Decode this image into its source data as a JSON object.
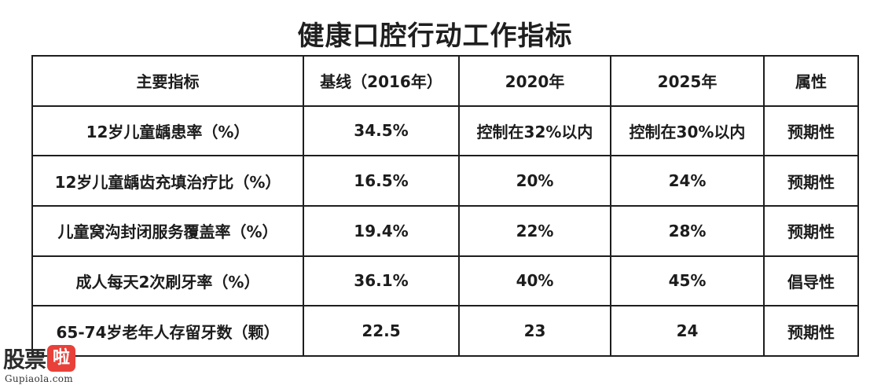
{
  "title": "健康口腔行动工作指标",
  "table": {
    "headers": [
      "主要指标",
      "基线（2016年）",
      "2020年",
      "2025年",
      "属性"
    ],
    "rows": [
      [
        "12岁儿童龋患率（%）",
        "34.5%",
        "控制在32%以内",
        "控制在30%以内",
        "预期性"
      ],
      [
        "12岁儿童龋齿充填治疗比（%）",
        "16.5%",
        "20%",
        "24%",
        "预期性"
      ],
      [
        "儿童窝沟封闭服务覆盖率（%）",
        "19.4%",
        "22%",
        "28%",
        "预期性"
      ],
      [
        "成人每天2次刷牙率（%）",
        "36.1%",
        "40%",
        "45%",
        "倡导性"
      ],
      [
        "65-74岁老年人存留牙数（颗）",
        "22.5",
        "23",
        "24",
        "预期性"
      ]
    ]
  },
  "watermark": {
    "logo_text_main": "股票",
    "logo_text_badge": "啦",
    "url": "Gupiaola.com",
    "badge_color": "#e8413a"
  }
}
